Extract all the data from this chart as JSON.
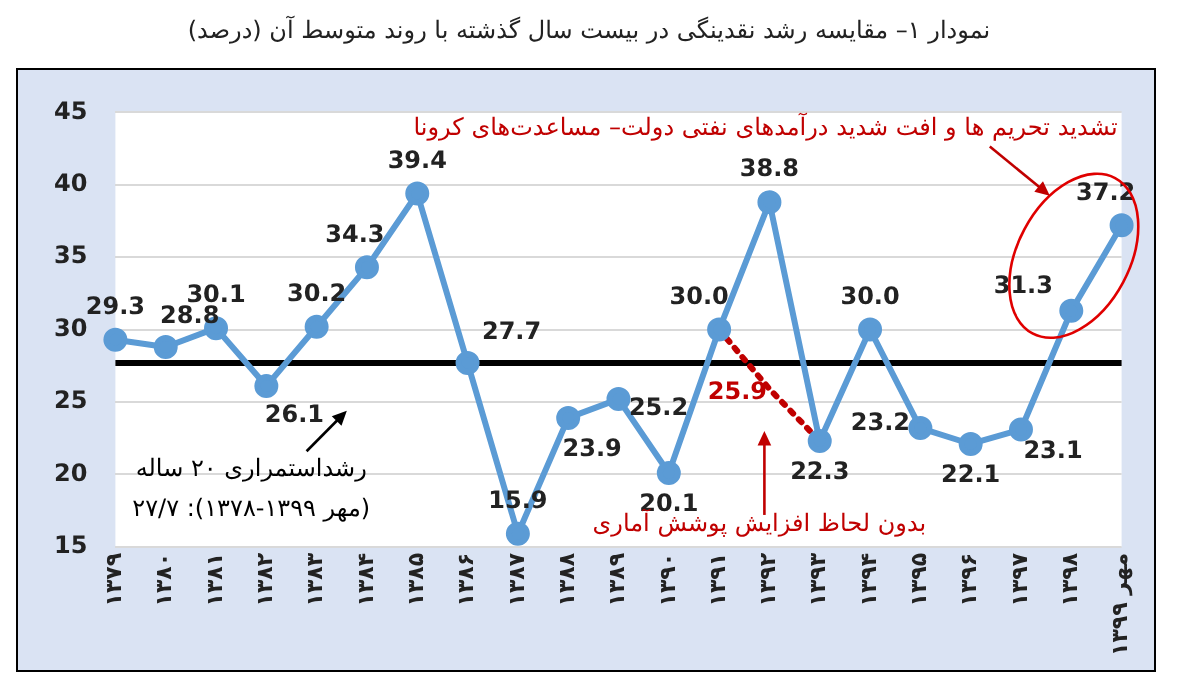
{
  "chart_data": {
    "type": "line",
    "title": "نمودار ۱– مقایسه رشد نقدینگی در بیست سال گذشته با روند متوسط آن (درصد)",
    "categories": [
      "۱۳۷۹",
      "۱۳۸۰",
      "۱۳۸۱",
      "۱۳۸۲",
      "۱۳۸۳",
      "۱۳۸۴",
      "۱۳۸۵",
      "۱۳۸۶",
      "۱۳۸۷",
      "۱۳۸۸",
      "۱۳۸۹",
      "۱۳۹۰",
      "۱۳۹۱",
      "۱۳۹۲",
      "۱۳۹۳",
      "۱۳۹۴",
      "۱۳۹۵",
      "۱۳۹۶",
      "۱۳۹۷",
      "۱۳۹۸",
      "مهر ۱۳۹۹"
    ],
    "series": [
      {
        "color": "#5b9bd5",
        "marker": "circle",
        "line_style": "solid",
        "values": [
          29.3,
          28.8,
          30.1,
          26.1,
          30.2,
          34.3,
          39.4,
          27.7,
          15.9,
          23.9,
          25.2,
          20.1,
          30.0,
          38.8,
          22.3,
          30.0,
          23.2,
          22.1,
          23.1,
          31.3,
          37.2
        ],
        "value_labels": [
          "29.3",
          "28.8",
          "30.1",
          "26.1",
          "30.2",
          "34.3",
          "39.4",
          "27.7",
          "15.9",
          "23.9",
          "25.2",
          "20.1",
          "30.0",
          "38.8",
          "22.3",
          "30.0",
          "23.2",
          "22.1",
          "23.1",
          "31.3",
          "37.2"
        ]
      },
      {
        "color": "#c00000",
        "marker": "none",
        "line_style": "dotted",
        "values": [
          null,
          null,
          null,
          null,
          null,
          null,
          null,
          null,
          null,
          null,
          null,
          null,
          30.0,
          25.9,
          22.3,
          null,
          null,
          null,
          null,
          null,
          null
        ],
        "value_labels": [
          null,
          null,
          null,
          null,
          null,
          null,
          null,
          null,
          null,
          null,
          null,
          null,
          null,
          "25.9",
          null,
          null,
          null,
          null,
          null,
          null,
          null
        ]
      }
    ],
    "ylim": [
      15,
      45
    ],
    "yticks": [
      15,
      20,
      25,
      30,
      35,
      40,
      45
    ],
    "grid": "y",
    "legend": false,
    "ref_lines": [
      {
        "axis": "y",
        "value": 27.7,
        "color": "#000000"
      }
    ],
    "annotations": [
      "رشداستمراری ۲۰ ساله\n(مهر ۱۳۹۹-۱۳۷۸): ۲۷/۷",
      "بدون لحاظ افزایش پوشش آماری",
      "تشدید تحریم ها و افت شدید درآمدهای نفتی دولت– مساعدت‌های کرونا"
    ]
  }
}
